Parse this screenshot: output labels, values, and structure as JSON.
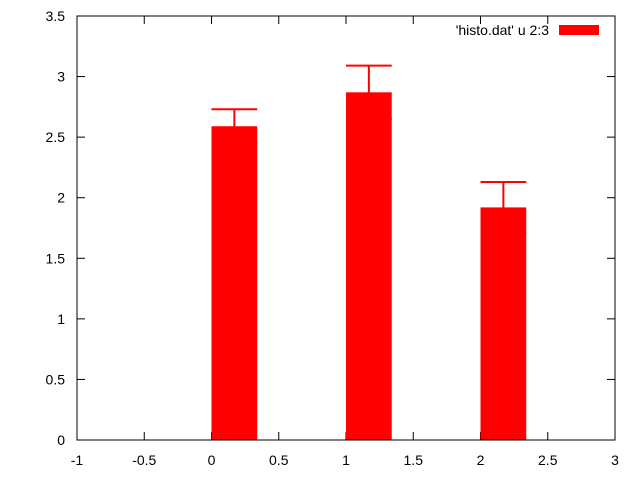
{
  "chart_data": {
    "type": "bar",
    "title": "",
    "xlabel": "",
    "ylabel": "",
    "xlim": [
      -1,
      3
    ],
    "ylim": [
      0,
      3.5
    ],
    "xticks": [
      -1,
      -0.5,
      0,
      0.5,
      1,
      1.5,
      2,
      2.5,
      3
    ],
    "xtick_labels": [
      "-1",
      "-0.5",
      "0",
      "0.5",
      "1",
      "1.5",
      "2",
      "2.5",
      "3"
    ],
    "yticks": [
      0,
      0.5,
      1,
      1.5,
      2,
      2.5,
      3,
      3.5
    ],
    "ytick_labels": [
      "0",
      "0.5",
      "1",
      "1.5",
      "2",
      "2.5",
      "3",
      "3.5"
    ],
    "grid": false,
    "legend_position": "top-right",
    "series": [
      {
        "name": "'histo.dat' u 2:3",
        "color": "#ff0000",
        "bar_width": 0.34,
        "x": [
          0,
          1,
          2
        ],
        "values": [
          2.59,
          2.87,
          1.92
        ],
        "errors": [
          0.14,
          0.22,
          0.21
        ]
      }
    ]
  }
}
